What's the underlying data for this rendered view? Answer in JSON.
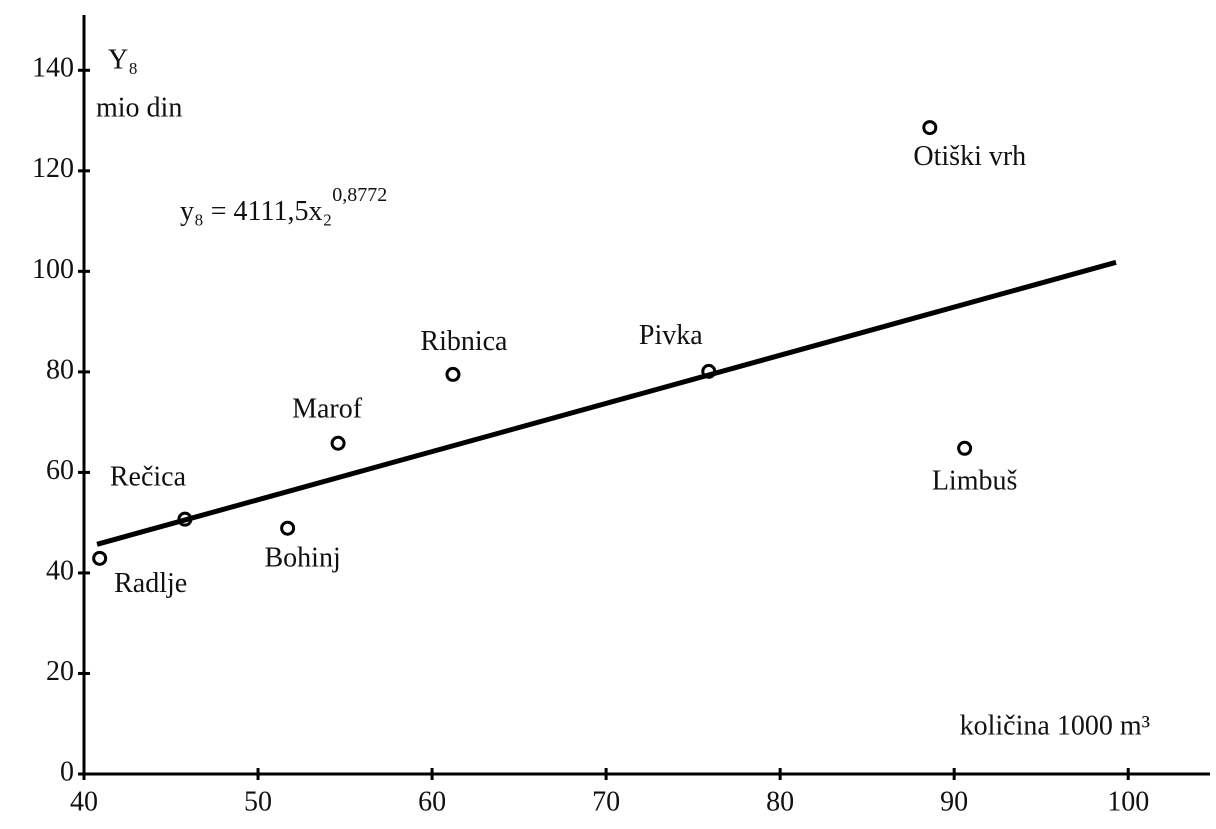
{
  "chart_data": {
    "type": "scatter",
    "y_label": "Y₈",
    "y_unit": "mio din",
    "equation": {
      "base": "y₈ = 4111,5x₂",
      "exponent": "0,8772"
    },
    "x_label": "količina 1000 m³",
    "xlim": [
      40,
      104.7
    ],
    "xticks": [
      40,
      50,
      60,
      70,
      80,
      90,
      100
    ],
    "ylim": [
      0,
      151
    ],
    "yticks": [
      0,
      20,
      40,
      60,
      80,
      100,
      120,
      140
    ],
    "color": "#000000",
    "series": [
      {
        "name": "points",
        "x": [
          40.9,
          45.8,
          51.7,
          54.6,
          61.2,
          75.9,
          88.6,
          90.6
        ],
        "values": [
          42.9,
          50.7,
          48.9,
          65.8,
          79.5,
          80.1,
          128.6,
          64.8
        ],
        "labels": [
          "Radlje",
          "Rečica",
          "Bohinj",
          "Marof",
          "Ribnica",
          "Pivka",
          "Otiški vrh",
          "Limbuš"
        ]
      },
      {
        "name": "fit",
        "x": [
          40.75,
          99.3
        ],
        "values": [
          45.7,
          101.8
        ]
      }
    ]
  }
}
